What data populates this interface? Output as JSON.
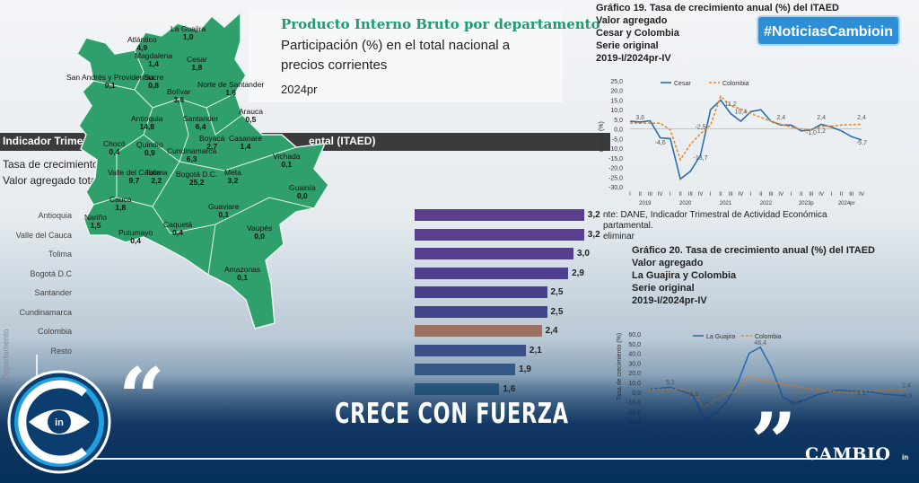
{
  "hashtag": "#NoticiasCambioin",
  "map": {
    "title": "Producto Interno Bruto por departamento",
    "subtitle_line1": "Participación (%) en el total nacional a",
    "subtitle_line2": "precios corrientes",
    "year": "2024pr",
    "departments": [
      {
        "name": "La Guajira",
        "value": "1,0"
      },
      {
        "name": "Atlántico",
        "value": "4,9"
      },
      {
        "name": "Magdalena",
        "value": "1,4"
      },
      {
        "name": "Cesar",
        "value": "1,8"
      },
      {
        "name": "San Andrés y Providencia",
        "value": "0,1"
      },
      {
        "name": "Sucre",
        "value": "0,8"
      },
      {
        "name": "Bolívar",
        "value": "3,6"
      },
      {
        "name": "Norte de Santander",
        "value": "1,6"
      },
      {
        "name": "Antioquia",
        "value": "14,8"
      },
      {
        "name": "Santander",
        "value": "6,4"
      },
      {
        "name": "Arauca",
        "value": "0,5"
      },
      {
        "name": "Chocó",
        "value": "0,4"
      },
      {
        "name": "Quindío",
        "value": "0,9"
      },
      {
        "name": "Boyacá",
        "value": "2,7"
      },
      {
        "name": "Casanare",
        "value": "1,4"
      },
      {
        "name": "Cundinamarca",
        "value": "6,3"
      },
      {
        "name": "Vichada",
        "value": "0,1"
      },
      {
        "name": "Valle del Cauca",
        "value": "9,7"
      },
      {
        "name": "Tolima",
        "value": "2,2"
      },
      {
        "name": "Bogotá D.C.",
        "value": "25,2"
      },
      {
        "name": "Meta",
        "value": "3,2"
      },
      {
        "name": "Guainía",
        "value": "0,0"
      },
      {
        "name": "Cauca",
        "value": "1,8"
      },
      {
        "name": "Nariño",
        "value": "1,5"
      },
      {
        "name": "Caquetá",
        "value": "0,4"
      },
      {
        "name": "Guaviare",
        "value": "0,1"
      },
      {
        "name": "Putumayo",
        "value": "0,4"
      },
      {
        "name": "Vaupés",
        "value": "0,0"
      },
      {
        "name": "Amazonas",
        "value": "0,1"
      }
    ]
  },
  "itaed": {
    "title_left": "Indicador Trimest",
    "title_right": "ental (ITAED)",
    "line1": "Tasa de crecimiento",
    "line2": "Valor agregado total",
    "y_axis_label": "Departamento",
    "bars": [
      {
        "label": "Antioquia",
        "value": 3.2,
        "text": "3,2",
        "color": "#5a3f8f"
      },
      {
        "label": "Valle del Cauca",
        "value": 3.2,
        "text": "3,2",
        "color": "#5a3f8f"
      },
      {
        "label": "Tolima",
        "value": 3.0,
        "text": "3,0",
        "color": "#553f8e"
      },
      {
        "label": "Bogotá D.C",
        "value": 2.9,
        "text": "2,9",
        "color": "#503f8d"
      },
      {
        "label": "Santander",
        "value": 2.5,
        "text": "2,5",
        "color": "#47418b"
      },
      {
        "label": "Cundinamarca",
        "value": 2.5,
        "text": "2,5",
        "color": "#414589"
      },
      {
        "label": "Colombia",
        "value": 2.4,
        "text": "2,4",
        "color": "#9c7162"
      },
      {
        "label": "Resto",
        "value": 2.1,
        "text": "2,1",
        "color": "#3a4f88"
      },
      {
        "label": "",
        "value": 1.9,
        "text": "1,9",
        "color": "#345886"
      },
      {
        "label": "",
        "value": 1.6,
        "text": "1,6",
        "color": "#2f5f84"
      }
    ]
  },
  "chart19": {
    "title_lines": [
      "Gráfico 19. Tasa de crecimiento anual (%) del ITAED",
      "Valor agregado",
      "Cesar y Colombia",
      "Serie original",
      "2019-I/2024pr-IV"
    ],
    "legend": [
      "Cesar",
      "Colombia"
    ],
    "colors": {
      "cesar": "#2a6db3",
      "colombia": "#e58b2d"
    },
    "y_ticks": [
      "25,0",
      "20,0",
      "15,0",
      "10,0",
      "5,0",
      "0,0",
      "-5,0",
      "-10,0",
      "-15,0",
      "-20,0",
      "-25,0",
      "-30,0"
    ],
    "y_label": "miento (%)",
    "years": [
      "2019",
      "2020",
      "2021",
      "2022",
      "2023p",
      "2024pr"
    ],
    "quarters": [
      "I",
      "II",
      "III",
      "IV"
    ],
    "annotations": [
      "3,6",
      "-4,6",
      "-13,7",
      "-2,5",
      "11,2",
      "10,4",
      "2,4",
      "-1,0",
      "2,4",
      "1,2",
      "2,4",
      "-5,7"
    ],
    "cesar": [
      4.0,
      3.6,
      4.2,
      -4.6,
      -5,
      -26,
      -22,
      -13.7,
      10,
      15,
      8,
      4,
      9,
      10,
      4,
      2,
      2,
      -1,
      -0.5,
      2.4,
      1,
      -1,
      -4,
      -5.7
    ],
    "colombia": [
      3,
      3,
      3,
      3,
      -0.5,
      -16,
      -8,
      -2.5,
      2,
      17,
      12,
      10.4,
      8,
      6,
      4,
      2.4,
      1,
      0,
      -0.5,
      1.2,
      1.5,
      2,
      2.2,
      2.4
    ],
    "source_lines": [
      "nte: DANE, Indicador Trimestral de Actividad Económica",
      "partamental.",
      "eliminar"
    ]
  },
  "chart20": {
    "title_lines": [
      "Gráfico 20. Tasa de crecimiento anual (%) del ITAED",
      "Valor agregado",
      "La Guajira y Colombia",
      "Serie original",
      "2019-I/2024pr-IV"
    ],
    "legend": [
      "La Guajira",
      "Colombia"
    ],
    "colors": {
      "guajira": "#2a6db3",
      "colombia": "#e58b2d"
    },
    "y_ticks": [
      "60,0",
      "50,0",
      "40,0",
      "30,0",
      "20,0",
      "10,0",
      "0,0",
      "-10,0",
      "-20,0",
      "-30,0",
      "-40,0"
    ],
    "y_label": "Tasa de crecimiento (%)",
    "annotations": [
      "5,1",
      "-2,5",
      "46,4",
      "-11,7",
      "1,1",
      "-3,9",
      "2,4"
    ],
    "guajira": [
      3,
      4,
      5.1,
      1,
      -2.5,
      -28,
      -22,
      -10,
      10,
      40,
      46.4,
      25,
      -5,
      -11.7,
      -8,
      -3,
      0,
      2,
      1,
      1.1,
      0,
      -2,
      -3,
      -3.9
    ],
    "colombia": [
      3,
      3,
      3,
      3,
      -0.5,
      -16,
      -8,
      -2.5,
      2,
      17,
      12,
      10.4,
      8,
      6,
      4,
      2.4,
      1,
      0,
      -0.5,
      1.2,
      1.5,
      2,
      2.2,
      2.4
    ]
  },
  "headline": "CRECE CON FUERZA",
  "logo": {
    "brand": "CAMBIO",
    "suffix": "in"
  }
}
